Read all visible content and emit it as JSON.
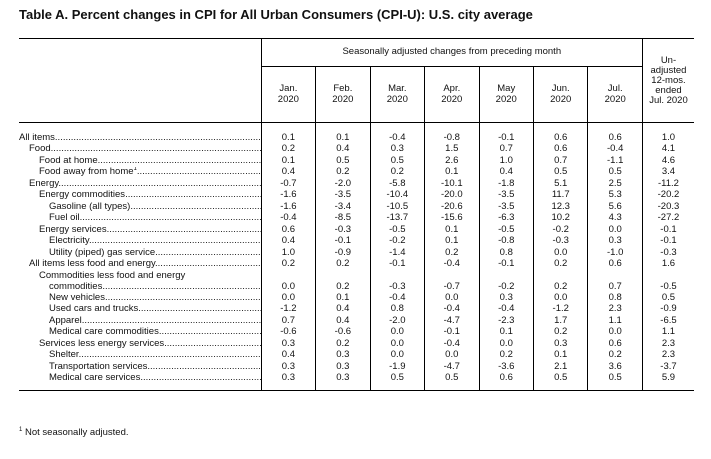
{
  "title": "Table A. Percent changes in CPI for All Urban Consumers (CPI-U): U.S. city average",
  "header": {
    "seasonal_group": "Seasonally adjusted changes from preceding month",
    "months": [
      {
        "m": "Jan.",
        "y": "2020"
      },
      {
        "m": "Feb.",
        "y": "2020"
      },
      {
        "m": "Mar.",
        "y": "2020"
      },
      {
        "m": "Apr.",
        "y": "2020"
      },
      {
        "m": "May",
        "y": "2020"
      },
      {
        "m": "Jun.",
        "y": "2020"
      },
      {
        "m": "Jul.",
        "y": "2020"
      }
    ],
    "unadjusted": [
      "Un-",
      "adjusted",
      "12-mos.",
      "ended",
      "Jul. 2020"
    ]
  },
  "rows": [
    {
      "label": "All items",
      "indent": 0,
      "values": [
        "0.1",
        "0.1",
        "-0.4",
        "-0.8",
        "-0.1",
        "0.6",
        "0.6",
        "1.0"
      ]
    },
    {
      "label": "Food",
      "indent": 1,
      "values": [
        "0.2",
        "0.4",
        "0.3",
        "1.5",
        "0.7",
        "0.6",
        "-0.4",
        "4.1"
      ]
    },
    {
      "label": "Food at home",
      "indent": 2,
      "values": [
        "0.1",
        "0.5",
        "0.5",
        "2.6",
        "1.0",
        "0.7",
        "-1.1",
        "4.6"
      ]
    },
    {
      "label": "Food away from home",
      "indent": 2,
      "sup": "1",
      "values": [
        "0.4",
        "0.2",
        "0.2",
        "0.1",
        "0.4",
        "0.5",
        "0.5",
        "3.4"
      ]
    },
    {
      "label": "Energy",
      "indent": 1,
      "values": [
        "-0.7",
        "-2.0",
        "-5.8",
        "-10.1",
        "-1.8",
        "5.1",
        "2.5",
        "-11.2"
      ]
    },
    {
      "label": "Energy commodities",
      "indent": 2,
      "values": [
        "-1.6",
        "-3.5",
        "-10.4",
        "-20.0",
        "-3.5",
        "11.7",
        "5.3",
        "-20.2"
      ]
    },
    {
      "label": "Gasoline (all types)",
      "indent": 3,
      "values": [
        "-1.6",
        "-3.4",
        "-10.5",
        "-20.6",
        "-3.5",
        "12.3",
        "5.6",
        "-20.3"
      ]
    },
    {
      "label": "Fuel oil",
      "indent": 3,
      "values": [
        "-0.4",
        "-8.5",
        "-13.7",
        "-15.6",
        "-6.3",
        "10.2",
        "4.3",
        "-27.2"
      ]
    },
    {
      "label": "Energy services",
      "indent": 2,
      "values": [
        "0.6",
        "-0.3",
        "-0.5",
        "0.1",
        "-0.5",
        "-0.2",
        "0.0",
        "-0.1"
      ]
    },
    {
      "label": "Electricity",
      "indent": 3,
      "values": [
        "0.4",
        "-0.1",
        "-0.2",
        "0.1",
        "-0.8",
        "-0.3",
        "0.3",
        "-0.1"
      ]
    },
    {
      "label": "Utility (piped) gas service",
      "indent": 3,
      "values": [
        "1.0",
        "-0.9",
        "-1.4",
        "0.2",
        "0.8",
        "0.0",
        "-1.0",
        "-0.3"
      ]
    },
    {
      "label": "All items less food and energy",
      "indent": 1,
      "values": [
        "0.2",
        "0.2",
        "-0.1",
        "-0.4",
        "-0.1",
        "0.2",
        "0.6",
        "1.6"
      ]
    },
    {
      "label": "Commodities less food and energy",
      "label2": "commodities",
      "indent": 2,
      "values": [
        "0.0",
        "0.2",
        "-0.3",
        "-0.7",
        "-0.2",
        "0.2",
        "0.7",
        "-0.5"
      ]
    },
    {
      "label": "New vehicles",
      "indent": 3,
      "values": [
        "0.0",
        "0.1",
        "-0.4",
        "0.0",
        "0.3",
        "0.0",
        "0.8",
        "0.5"
      ]
    },
    {
      "label": "Used cars and trucks",
      "indent": 3,
      "values": [
        "-1.2",
        "0.4",
        "0.8",
        "-0.4",
        "-0.4",
        "-1.2",
        "2.3",
        "-0.9"
      ]
    },
    {
      "label": "Apparel",
      "indent": 3,
      "values": [
        "0.7",
        "0.4",
        "-2.0",
        "-4.7",
        "-2.3",
        "1.7",
        "1.1",
        "-6.5"
      ]
    },
    {
      "label": "Medical care commodities",
      "indent": 3,
      "values": [
        "-0.6",
        "-0.6",
        "0.0",
        "-0.1",
        "0.1",
        "0.2",
        "0.0",
        "1.1"
      ]
    },
    {
      "label": "Services less energy services",
      "indent": 2,
      "values": [
        "0.3",
        "0.2",
        "0.0",
        "-0.4",
        "0.0",
        "0.3",
        "0.6",
        "2.3"
      ]
    },
    {
      "label": "Shelter",
      "indent": 3,
      "values": [
        "0.4",
        "0.3",
        "0.0",
        "0.0",
        "0.2",
        "0.1",
        "0.2",
        "2.3"
      ]
    },
    {
      "label": "Transportation services",
      "indent": 3,
      "values": [
        "0.3",
        "0.3",
        "-1.9",
        "-4.7",
        "-3.6",
        "2.1",
        "3.6",
        "-3.7"
      ]
    },
    {
      "label": "Medical care services",
      "indent": 3,
      "values": [
        "0.3",
        "0.3",
        "0.5",
        "0.5",
        "0.6",
        "0.5",
        "0.5",
        "5.9"
      ]
    }
  ],
  "footnote": {
    "marker": "1",
    "text": " Not seasonally adjusted."
  }
}
